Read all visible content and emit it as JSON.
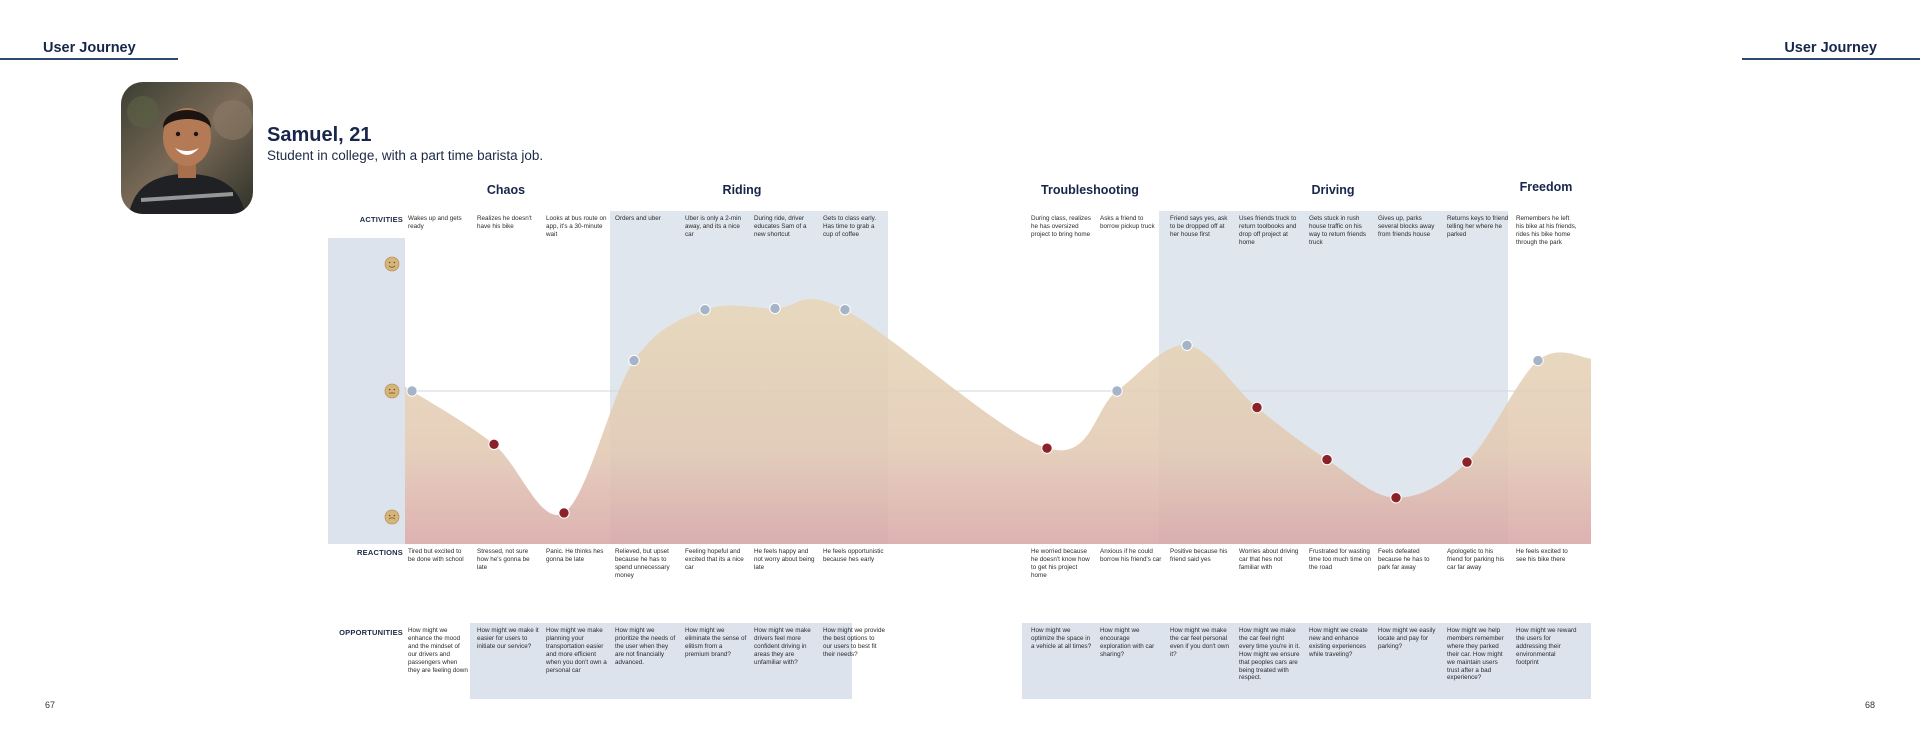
{
  "header": {
    "left_title": "User Journey",
    "right_title": "User Journey",
    "left_page_number": "67",
    "right_page_number": "68"
  },
  "persona": {
    "name": "Samuel, 21",
    "description": "Student in college, with a part time barista job.",
    "avatar_icon": "person-photo-icon"
  },
  "row_labels": {
    "activities": "ACTIVITIES",
    "reactions": "REACTIONS",
    "opportunities": "OPPORTUNITIES"
  },
  "stages": [
    "Chaos",
    "Riding",
    "Troubleshooting",
    "Driving",
    "Freedom"
  ],
  "emotion_scale": [
    "positive",
    "neutral",
    "negative"
  ],
  "colors": {
    "highlight_band": "#e0e6ed",
    "curve_fill_top": "#e7d7b8",
    "curve_fill_bottom": "#d9a7a8",
    "point_positive": "#a5b4c8",
    "point_negative": "#8a2228",
    "face_icon": "#d6b57a",
    "heading": "#17264a"
  },
  "steps": [
    {
      "activity": "Wakes up and gets ready",
      "reaction": "Tired but excited to be done with school",
      "opportunity": "How might we enhance the mood and the mindset of our drivers and passengers when they are feeling down"
    },
    {
      "activity": "Realizes he doesn't have his bike",
      "reaction": "Stressed, not sure how he's gonna be late",
      "opportunity": "How might we make it easier for users to initiate our service?"
    },
    {
      "activity": "Looks at bus route on app, it's a 30-minute wait",
      "reaction": "Panic. He thinks hes gonna be late",
      "opportunity": "How might we make planning your transportation easier and more efficient when you don't own a personal car"
    },
    {
      "activity": "Orders and uber",
      "reaction": "Relieved, but upset because he has to spend unnecessary money",
      "opportunity": "How might we prioritize the needs of the user when they are not financially advanced."
    },
    {
      "activity": "Uber is only a 2-min away, and its a nice car",
      "reaction": "Feeling hopeful and excited that its a nice car",
      "opportunity": "How might we eliminate the sense of elitism from a premium brand?"
    },
    {
      "activity": "During ride, driver educates Sam of a new shortcut",
      "reaction": "He feels happy and not worry about being late",
      "opportunity": "How might we make drivers feel more confident driving in areas they are unfamiliar with?"
    },
    {
      "activity": "Gets to class early. Has time to grab a cup of coffee",
      "reaction": "He feels opportunistic because hes early",
      "opportunity": "How might we provide the best options to our users to best fit their needs?"
    },
    {
      "activity": "During class, realizes he has oversized project to bring home",
      "reaction": "He worried because he doesn't know how to get his project home",
      "opportunity": "How might we optimize the space in a vehicle at all times?"
    },
    {
      "activity": "Asks a friend to borrow pickup truck",
      "reaction": "Anxious if he could borrow his friend's car",
      "opportunity": "How might we encourage exploration with car sharing?"
    },
    {
      "activity": "Friend says yes, ask to be dropped off at her house first",
      "reaction": "Positive because his friend said yes",
      "opportunity": "How might we make the car feel personal even if you don't own it?"
    },
    {
      "activity": "Uses friends truck to return toolbooks and drop off project at home",
      "reaction": "Worries about driving car that hes not familiar with",
      "opportunity": "How might we make the car feel right every time you're in it. How might we ensure that peoples cars are being treated with respect."
    },
    {
      "activity": "Gets stuck in rush house traffic on his way to return friends truck",
      "reaction": "Frustrated for wasting time too much time on the road",
      "opportunity": "How might we create new and enhance existing experiences while traveling?"
    },
    {
      "activity": "Gives up, parks several blocks away from friends house",
      "reaction": "Feels defeated because he has to park far away",
      "opportunity": "How might we easily locate and pay for parking?"
    },
    {
      "activity": "Returns keys to friend telling her where he parked",
      "reaction": "Apologetic to his friend for parking his car far away",
      "opportunity": "How might we help members remember where they parked their car. How might we maintain users trust after a bad experience?"
    },
    {
      "activity": "Remembers he left his bike at his friends, rides his bike home through the park",
      "reaction": "He feels excited to see his bike there",
      "opportunity": "How might we reward the users for addressing their environmental footprint"
    }
  ],
  "chart_data": {
    "type": "line",
    "title": "",
    "xlabel": "",
    "ylabel": "",
    "y_range": [
      -1,
      1
    ],
    "y_meaning": "emotion: 1 = positive face, 0 = neutral face, -1 = negative face",
    "x": [
      "Wakes up",
      "Realizes no bike",
      "Bus route",
      "Orders uber",
      "Uber arrives",
      "During ride",
      "Gets to class",
      "During class",
      "Asks friend",
      "Friend says yes",
      "Uses truck",
      "Rush hour traffic",
      "Parks far away",
      "Returns keys",
      "Rides bike home"
    ],
    "values": [
      0.0,
      -0.42,
      -0.96,
      0.24,
      0.64,
      0.65,
      0.64,
      -0.45,
      0.0,
      0.36,
      -0.13,
      -0.54,
      -0.84,
      -0.56,
      0.24
    ],
    "point_sentiment": [
      "positive",
      "negative",
      "negative",
      "positive",
      "positive",
      "positive",
      "positive",
      "negative",
      "positive",
      "positive",
      "negative",
      "negative",
      "negative",
      "negative",
      "positive"
    ]
  }
}
